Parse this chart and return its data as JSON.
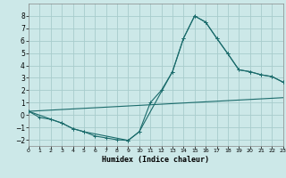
{
  "xlabel": "Humidex (Indice chaleur)",
  "xlim": [
    0,
    23
  ],
  "ylim": [
    -2.5,
    9.0
  ],
  "xticks": [
    0,
    1,
    2,
    3,
    4,
    5,
    6,
    7,
    8,
    9,
    10,
    11,
    12,
    13,
    14,
    15,
    16,
    17,
    18,
    19,
    20,
    21,
    22,
    23
  ],
  "yticks": [
    -2,
    -1,
    0,
    1,
    2,
    3,
    4,
    5,
    6,
    7,
    8
  ],
  "bg_color": "#cce8e8",
  "grid_color": "#a8cccc",
  "line_color": "#1a6b6b",
  "curve1_x": [
    0,
    1,
    2,
    3,
    4,
    5,
    6,
    7,
    8,
    9,
    10,
    11,
    12,
    13,
    14,
    15,
    16,
    17,
    18,
    19,
    20,
    21,
    22,
    23
  ],
  "curve1_y": [
    0.3,
    -0.2,
    -0.35,
    -0.65,
    -1.1,
    -1.35,
    -1.7,
    -1.85,
    -2.0,
    -2.05,
    -1.35,
    1.0,
    2.0,
    3.5,
    6.2,
    8.0,
    7.5,
    6.2,
    4.95,
    3.65,
    3.5,
    3.25,
    3.1,
    2.65
  ],
  "curve2_x": [
    0,
    3,
    4,
    5,
    9,
    10,
    13,
    14,
    15,
    16,
    17,
    18,
    19,
    20,
    21,
    22,
    23
  ],
  "curve2_y": [
    0.3,
    -0.65,
    -1.1,
    -1.35,
    -2.05,
    -1.35,
    3.5,
    6.2,
    8.0,
    7.5,
    6.2,
    4.95,
    3.65,
    3.5,
    3.25,
    3.1,
    2.65
  ],
  "line3_x": [
    0,
    23
  ],
  "line3_y": [
    0.3,
    1.4
  ]
}
